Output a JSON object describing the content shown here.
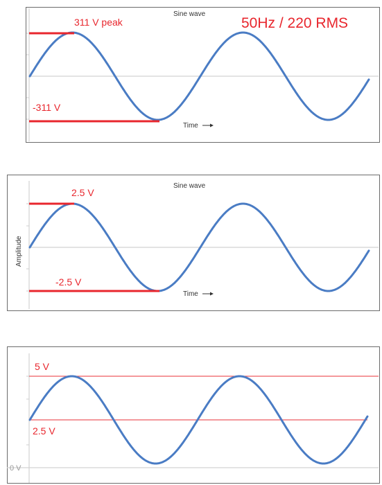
{
  "panels": [
    {
      "title": "Sine wave",
      "annotation": "50Hz / 220 RMS",
      "peak_label": "311 V peak",
      "trough_label": "-311 V",
      "x_label": "Time",
      "arrow_icon": "right-arrow-icon",
      "colors": {
        "wave": "#4a7cc4",
        "marker": "#e8262d"
      }
    },
    {
      "title": "Sine wave",
      "y_label": "Amplitude",
      "peak_label": "2.5 V",
      "trough_label": "-2.5 V",
      "x_label": "Time",
      "arrow_icon": "right-arrow-icon"
    },
    {
      "top_label": "5 V",
      "mid_label": "2.5 V",
      "zero_label": "0 V"
    }
  ]
}
